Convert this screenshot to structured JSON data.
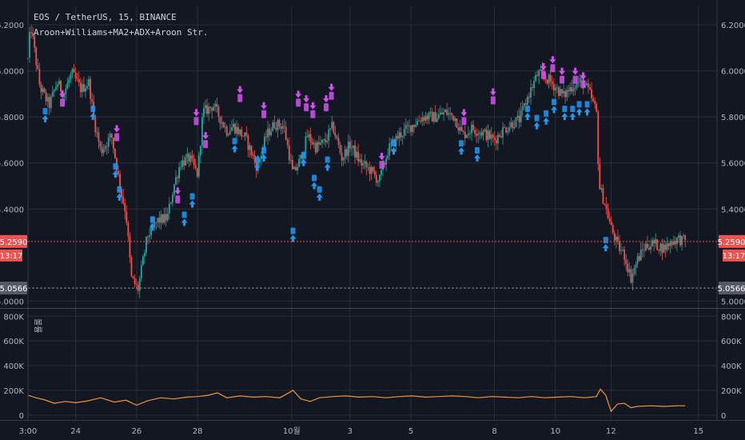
{
  "chart_data": {
    "type": "candlestick",
    "title": "EOS / TetherUS, 15, BINANCE",
    "subtitle": "Aroon+Williams+MA2+ADX+Aroon Str.",
    "price_axis": {
      "ticks": [
        "6.2000",
        "6.0000",
        "5.8000",
        "5.6000",
        "5.4000",
        "5.0000"
      ],
      "tick_values": [
        6.2,
        6.0,
        5.8,
        5.6,
        5.4,
        5.0
      ],
      "ylim": [
        4.97,
        6.28
      ]
    },
    "current_price": {
      "label": "5.2590",
      "value": 5.259,
      "countdown": "13:17",
      "color": "#ef5350"
    },
    "reference_line": {
      "label": "5.0566",
      "value": 5.0566,
      "color": "#757b8a"
    },
    "volume_axis": {
      "label": "볼륨",
      "ticks": [
        "800K",
        "600K",
        "400K",
        "200K",
        "0"
      ],
      "tick_values": [
        800000,
        600000,
        400000,
        200000,
        0
      ],
      "ylim": [
        -40000,
        860000
      ]
    },
    "time_axis": {
      "ticks": [
        "3:00",
        "24",
        "26",
        "28",
        "10월",
        "3",
        "5",
        "8",
        "10",
        "12",
        "15"
      ],
      "tick_positions": [
        0,
        3.6,
        8.2,
        12.8,
        19.9,
        24.3,
        28.9,
        35.2,
        39.8,
        44.0,
        50.6
      ],
      "xlim": [
        0,
        52
      ]
    },
    "price_anchors": [
      [
        0,
        6.05
      ],
      [
        0.2,
        6.2
      ],
      [
        0.9,
        5.93
      ],
      [
        1.6,
        5.85
      ],
      [
        2.2,
        5.95
      ],
      [
        2.7,
        5.9
      ],
      [
        3.3,
        5.99
      ],
      [
        4.0,
        5.92
      ],
      [
        4.6,
        5.95
      ],
      [
        5.0,
        5.78
      ],
      [
        5.5,
        5.65
      ],
      [
        6.3,
        5.72
      ],
      [
        7.0,
        5.48
      ],
      [
        7.4,
        5.38
      ],
      [
        7.8,
        5.1
      ],
      [
        8.3,
        5.05
      ],
      [
        9.0,
        5.28
      ],
      [
        9.8,
        5.35
      ],
      [
        10.5,
        5.36
      ],
      [
        11.0,
        5.5
      ],
      [
        11.5,
        5.6
      ],
      [
        12.2,
        5.62
      ],
      [
        12.8,
        5.55
      ],
      [
        13.2,
        5.82
      ],
      [
        14.0,
        5.85
      ],
      [
        15.0,
        5.74
      ],
      [
        15.5,
        5.76
      ],
      [
        16.4,
        5.71
      ],
      [
        17.3,
        5.58
      ],
      [
        18.0,
        5.72
      ],
      [
        18.6,
        5.77
      ],
      [
        19.3,
        5.76
      ],
      [
        20.0,
        5.55
      ],
      [
        20.6,
        5.62
      ],
      [
        21.1,
        5.72
      ],
      [
        21.7,
        5.67
      ],
      [
        22.4,
        5.69
      ],
      [
        23.0,
        5.76
      ],
      [
        23.7,
        5.62
      ],
      [
        24.3,
        5.68
      ],
      [
        25.1,
        5.6
      ],
      [
        25.8,
        5.57
      ],
      [
        26.5,
        5.52
      ],
      [
        27.2,
        5.66
      ],
      [
        28.0,
        5.72
      ],
      [
        28.9,
        5.76
      ],
      [
        29.8,
        5.8
      ],
      [
        30.8,
        5.8
      ],
      [
        31.5,
        5.82
      ],
      [
        32.2,
        5.8
      ],
      [
        32.8,
        5.72
      ],
      [
        33.5,
        5.75
      ],
      [
        34.4,
        5.73
      ],
      [
        35.2,
        5.7
      ],
      [
        35.8,
        5.74
      ],
      [
        36.5,
        5.77
      ],
      [
        37.1,
        5.79
      ],
      [
        37.8,
        5.9
      ],
      [
        38.5,
        5.99
      ],
      [
        39.3,
        5.96
      ],
      [
        39.8,
        5.93
      ],
      [
        40.4,
        5.89
      ],
      [
        41.0,
        5.93
      ],
      [
        41.8,
        5.96
      ],
      [
        42.4,
        5.9
      ],
      [
        42.9,
        5.82
      ],
      [
        43.1,
        5.5
      ],
      [
        43.5,
        5.43
      ],
      [
        44.0,
        5.32
      ],
      [
        44.5,
        5.24
      ],
      [
        45.0,
        5.2
      ],
      [
        45.5,
        5.1
      ],
      [
        46.0,
        5.18
      ],
      [
        46.6,
        5.24
      ],
      [
        47.2,
        5.25
      ],
      [
        48.0,
        5.23
      ],
      [
        48.6,
        5.26
      ],
      [
        49.1,
        5.27
      ],
      [
        49.6,
        5.26
      ]
    ],
    "volume_series": [
      [
        0,
        160000
      ],
      [
        0.6,
        140000
      ],
      [
        1.2,
        125000
      ],
      [
        2.0,
        95000
      ],
      [
        2.8,
        110000
      ],
      [
        3.6,
        100000
      ],
      [
        4.5,
        115000
      ],
      [
        5.5,
        140000
      ],
      [
        6.5,
        105000
      ],
      [
        7.4,
        120000
      ],
      [
        8.2,
        80000
      ],
      [
        9.0,
        115000
      ],
      [
        10.0,
        140000
      ],
      [
        11.0,
        130000
      ],
      [
        12.0,
        145000
      ],
      [
        12.8,
        150000
      ],
      [
        13.6,
        160000
      ],
      [
        14.3,
        180000
      ],
      [
        15.0,
        140000
      ],
      [
        16.0,
        155000
      ],
      [
        17.0,
        145000
      ],
      [
        18.0,
        150000
      ],
      [
        19.0,
        140000
      ],
      [
        19.6,
        175000
      ],
      [
        20.0,
        200000
      ],
      [
        20.6,
        130000
      ],
      [
        21.3,
        110000
      ],
      [
        22.0,
        140000
      ],
      [
        23.0,
        150000
      ],
      [
        24.0,
        155000
      ],
      [
        25.0,
        145000
      ],
      [
        26.0,
        150000
      ],
      [
        27.0,
        140000
      ],
      [
        28.0,
        150000
      ],
      [
        29.0,
        155000
      ],
      [
        30.0,
        145000
      ],
      [
        31.0,
        150000
      ],
      [
        32.0,
        155000
      ],
      [
        33.0,
        150000
      ],
      [
        34.0,
        140000
      ],
      [
        35.0,
        150000
      ],
      [
        36.0,
        145000
      ],
      [
        37.0,
        140000
      ],
      [
        38.0,
        150000
      ],
      [
        39.0,
        140000
      ],
      [
        40.0,
        145000
      ],
      [
        41.0,
        150000
      ],
      [
        42.0,
        140000
      ],
      [
        42.9,
        150000
      ],
      [
        43.2,
        210000
      ],
      [
        43.6,
        160000
      ],
      [
        44.0,
        30000
      ],
      [
        44.5,
        90000
      ],
      [
        45.0,
        95000
      ],
      [
        45.5,
        60000
      ],
      [
        46.0,
        70000
      ],
      [
        47.0,
        75000
      ],
      [
        48.0,
        70000
      ],
      [
        49.0,
        75000
      ],
      [
        49.6,
        75000
      ]
    ],
    "buy_signals": [
      [
        1.3,
        5.79
      ],
      [
        4.9,
        5.8
      ],
      [
        6.6,
        5.55
      ],
      [
        6.9,
        5.45
      ],
      [
        9.4,
        5.32
      ],
      [
        11.8,
        5.34
      ],
      [
        12.4,
        5.42
      ],
      [
        15.6,
        5.66
      ],
      [
        17.3,
        5.58
      ],
      [
        17.8,
        5.62
      ],
      [
        20.0,
        5.27
      ],
      [
        20.8,
        5.6
      ],
      [
        21.6,
        5.5
      ],
      [
        22.0,
        5.45
      ],
      [
        22.6,
        5.58
      ],
      [
        27.6,
        5.65
      ],
      [
        32.7,
        5.65
      ],
      [
        33.9,
        5.62
      ],
      [
        37.7,
        5.8
      ],
      [
        38.4,
        5.76
      ],
      [
        39.1,
        5.78
      ],
      [
        39.7,
        5.83
      ],
      [
        40.5,
        5.8
      ],
      [
        41.1,
        5.8
      ],
      [
        41.6,
        5.82
      ],
      [
        42.2,
        5.82
      ],
      [
        43.6,
        5.23
      ]
    ],
    "sell_signals": [
      [
        2.6,
        5.9
      ],
      [
        6.7,
        5.75
      ],
      [
        11.3,
        5.48
      ],
      [
        12.7,
        5.82
      ],
      [
        13.4,
        5.72
      ],
      [
        16.0,
        5.92
      ],
      [
        17.8,
        5.85
      ],
      [
        20.4,
        5.9
      ],
      [
        21.0,
        5.88
      ],
      [
        21.5,
        5.85
      ],
      [
        22.5,
        5.88
      ],
      [
        22.9,
        5.93
      ],
      [
        26.7,
        5.63
      ],
      [
        32.9,
        5.82
      ],
      [
        35.1,
        5.91
      ],
      [
        38.9,
        6.02
      ],
      [
        39.6,
        6.05
      ],
      [
        40.3,
        6.0
      ],
      [
        41.3,
        6.0
      ],
      [
        41.9,
        5.98
      ]
    ]
  },
  "colors": {
    "background": "#131722",
    "grid": "#2a2e39",
    "candle_up": "#26a69a",
    "candle_down": "#ef5350",
    "buy_signal": "#2196f3",
    "sell_signal": "#d053f0",
    "volume_line": "#f0943c"
  }
}
